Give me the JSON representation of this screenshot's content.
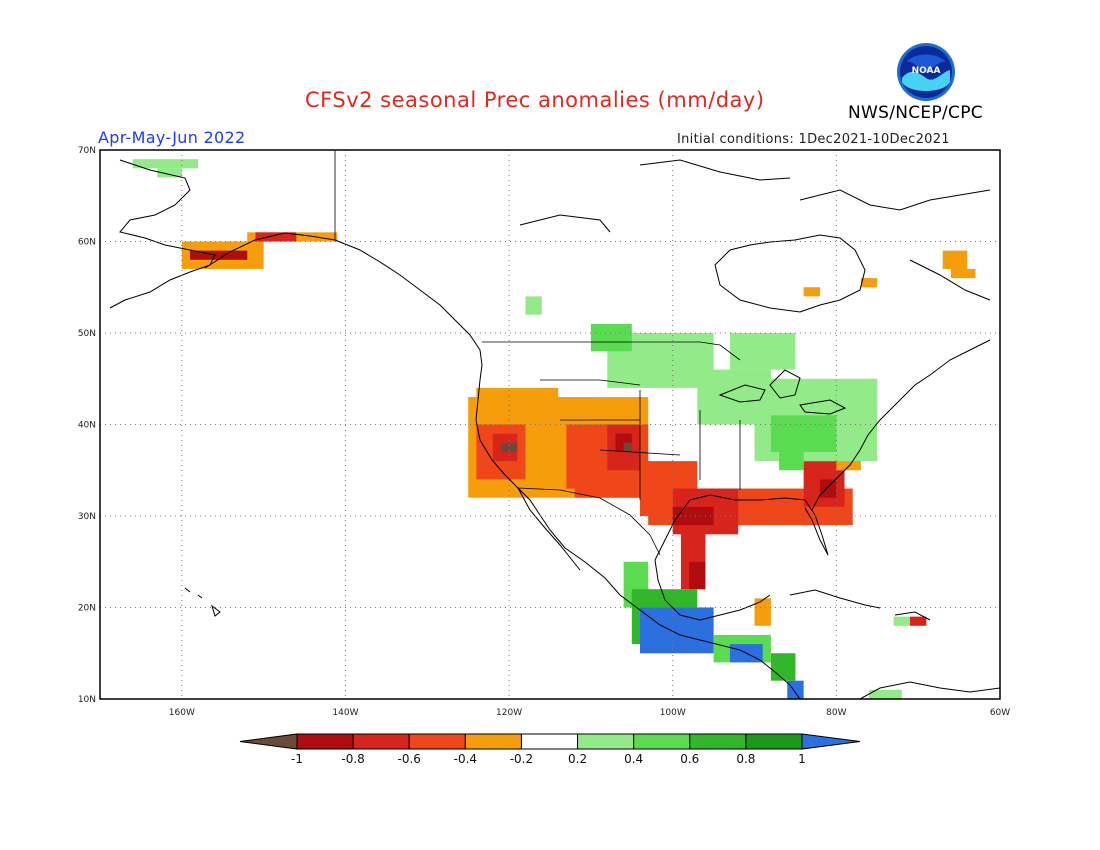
{
  "header": {
    "title": "CFSv2 seasonal Prec anomalies (mm/day)",
    "season": "Apr-May-Jun 2022",
    "initial_conditions": "Initial conditions: 1Dec2021-10Dec2021",
    "agency": "NWS/NCEP/CPC",
    "logo_text": "NOAA"
  },
  "map": {
    "region": "North America",
    "lon_range": [
      -170,
      -60
    ],
    "lat_range": [
      10,
      70
    ],
    "lat_ticks": [
      "10N",
      "20N",
      "30N",
      "40N",
      "50N",
      "60N",
      "70N"
    ],
    "lon_ticks": [
      "160W",
      "140W",
      "120W",
      "100W",
      "80W",
      "60W"
    ],
    "gridlines": "dotted"
  },
  "colorbar": {
    "labels": [
      "-1",
      "-0.8",
      "-0.6",
      "-0.4",
      "-0.2",
      "0.2",
      "0.4",
      "0.6",
      "0.8",
      "1"
    ],
    "colors": [
      "#6b4a3a",
      "#b00e0e",
      "#d8251c",
      "#f0471a",
      "#f59d0a",
      "#ffffff",
      "#92eb88",
      "#5adc50",
      "#30b82a",
      "#1a9a1a",
      "#2c6fde"
    ]
  }
}
